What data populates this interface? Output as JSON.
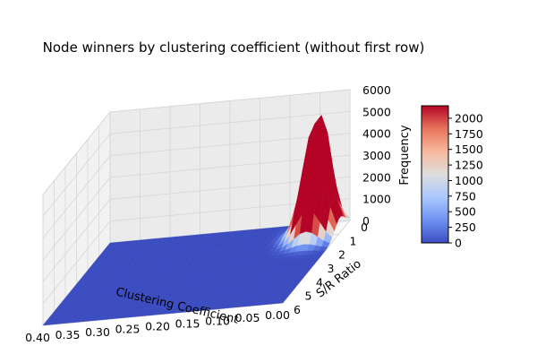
{
  "chart_data": {
    "type": "surface3d",
    "title": "Node winners by clustering coefficient (without first row)",
    "xlabel": "Clustering Coefficient",
    "ylabel": "S/R Ratio",
    "zlabel": "Frequency",
    "x_ticks": [
      "0.40",
      "0.35",
      "0.30",
      "0.25",
      "0.20",
      "0.15",
      "0.10",
      "0.05",
      "0.00"
    ],
    "x_tick_values": [
      0.4,
      0.35,
      0.3,
      0.25,
      0.2,
      0.15,
      0.1,
      0.05,
      0.0
    ],
    "y_ticks": [
      "0",
      "1",
      "2",
      "3",
      "4",
      "5",
      "6"
    ],
    "y_tick_values": [
      0,
      1,
      2,
      3,
      4,
      5,
      6
    ],
    "z_ticks": [
      "0",
      "1000",
      "2000",
      "3000",
      "4000",
      "5000",
      "6000"
    ],
    "z_tick_values": [
      0,
      1000,
      2000,
      3000,
      4000,
      5000,
      6000
    ],
    "xlim": [
      0.0,
      0.4
    ],
    "ylim": [
      0,
      6
    ],
    "zlim": [
      0,
      6000
    ],
    "colorbar": {
      "ticks": [
        "0",
        "250",
        "500",
        "750",
        "1000",
        "1250",
        "1500",
        "1750",
        "2000"
      ],
      "tick_values": [
        0,
        250,
        500,
        750,
        1000,
        1250,
        1500,
        1750,
        2000
      ],
      "range": [
        0,
        2200
      ],
      "colormap": [
        "#3b4cc0",
        "#6f92f3",
        "#aac7fd",
        "#dddddd",
        "#f7b89c",
        "#e7745b",
        "#b40426"
      ]
    },
    "surface": {
      "peak_x": 0.04,
      "peak_y": 0.5,
      "peak_value": 5400,
      "secondary_peak_x": 0.04,
      "secondary_peak_y": 0.9,
      "secondary_peak_value": 5300,
      "baseline": 0,
      "grid": true
    }
  }
}
